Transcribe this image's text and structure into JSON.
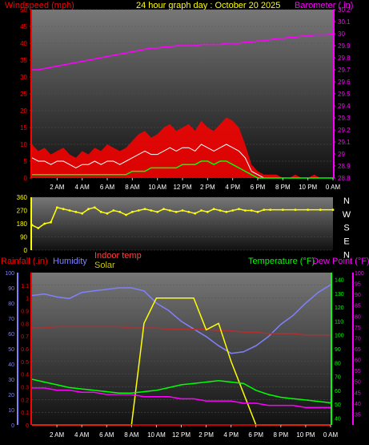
{
  "header": {
    "title": "24 hour graph day : October 20 2025",
    "left_label": "Windspeed (mph)",
    "right_label": "Barometer (.in)"
  },
  "colors": {
    "title": "#ffff00",
    "wind": "#ff0000",
    "gust_band": "#ff0000",
    "avg_wind": "#00ff00",
    "barometer": "#ff00ff",
    "direction": "#ffff00",
    "rainfall": "#ff0000",
    "humidity": "#8080ff",
    "indoor_temp": "#ff4040",
    "solar": "#ffff00",
    "temperature": "#00ff00",
    "dew_point": "#ff00ff",
    "plot_bg": "#333333"
  },
  "time_axis": [
    "2 AM",
    "4 AM",
    "6 AM",
    "8 AM",
    "10 AM",
    "12 PM",
    "2 PM",
    "4 PM",
    "6 PM",
    "8 PM",
    "10 PM",
    "0 AM"
  ],
  "chart_data": [
    {
      "type": "line",
      "name": "wind-barometer",
      "x_hours": [
        0,
        0.5,
        1,
        1.5,
        2,
        2.5,
        3,
        3.5,
        4,
        4.5,
        5,
        5.5,
        6,
        6.5,
        7,
        7.5,
        8,
        8.5,
        9,
        9.5,
        10,
        10.5,
        11,
        11.5,
        12,
        12.5,
        13,
        13.5,
        14,
        14.5,
        15,
        15.5,
        16,
        16.5,
        17,
        17.5,
        18,
        18.5,
        19,
        19.5,
        20,
        20.5,
        21,
        21.5,
        22,
        22.5,
        23,
        23.5,
        24
      ],
      "left_axis": {
        "label": "Windspeed (mph)",
        "ylim": [
          0,
          50
        ],
        "ticks": [
          0,
          5,
          10,
          15,
          20,
          25,
          30,
          35,
          40,
          45,
          50
        ]
      },
      "right_axis": {
        "label": "Barometer (.in)",
        "ylim": [
          28.8,
          30.2
        ],
        "ticks": [
          "28.8",
          "28.9",
          "29",
          "29.1",
          "29.2",
          "29.3",
          "29.4",
          "29.5",
          "29.6",
          "29.7",
          "29.8",
          "29.9",
          "30",
          "30.1",
          "30.2"
        ]
      },
      "series": [
        {
          "id": "gust",
          "values": [
            10,
            8,
            9,
            7,
            8,
            9,
            7,
            6,
            8,
            7,
            9,
            8,
            10,
            9,
            8,
            9,
            11,
            13,
            14,
            12,
            13,
            15,
            16,
            14,
            15,
            16,
            14,
            17,
            15,
            14,
            16,
            18,
            17,
            15,
            10,
            4,
            2,
            1,
            1,
            1,
            0,
            0,
            1,
            0,
            0,
            1,
            0,
            0,
            0
          ]
        },
        {
          "id": "wind",
          "values": [
            6,
            5,
            5,
            4,
            5,
            5,
            4,
            3,
            4,
            4,
            5,
            4,
            5,
            5,
            4,
            5,
            6,
            7,
            8,
            7,
            7,
            8,
            9,
            8,
            9,
            9,
            8,
            10,
            9,
            8,
            9,
            10,
            9,
            8,
            6,
            2,
            1,
            0,
            0,
            0,
            0,
            0,
            0,
            0,
            0,
            0,
            0,
            0,
            0
          ]
        },
        {
          "id": "avg_wind",
          "values": [
            1,
            1,
            1,
            1,
            1,
            1,
            1,
            1,
            1,
            1,
            1,
            1,
            1,
            1,
            1,
            1,
            2,
            2,
            2,
            3,
            3,
            3,
            3,
            3,
            4,
            4,
            4,
            5,
            5,
            4,
            5,
            5,
            4,
            3,
            2,
            1,
            0,
            0,
            0,
            0,
            0,
            0,
            0,
            0,
            0,
            0,
            0,
            0,
            0
          ]
        },
        {
          "id": "barometer",
          "values": [
            29.7,
            29.7,
            29.71,
            29.72,
            29.73,
            29.74,
            29.75,
            29.76,
            29.77,
            29.78,
            29.79,
            29.8,
            29.81,
            29.82,
            29.83,
            29.84,
            29.85,
            29.86,
            29.87,
            29.88,
            29.88,
            29.89,
            29.89,
            29.9,
            29.9,
            29.9,
            29.9,
            29.91,
            29.91,
            29.91,
            29.91,
            29.92,
            29.92,
            29.92,
            29.93,
            29.93,
            29.94,
            29.94,
            29.95,
            29.96,
            29.96,
            29.97,
            29.97,
            29.98,
            29.98,
            29.99,
            29.99,
            29.99,
            30.0
          ]
        }
      ]
    },
    {
      "type": "scatter",
      "name": "wind-direction",
      "x_hours": [
        0,
        0.5,
        1,
        1.5,
        2,
        2.5,
        3,
        3.5,
        4,
        4.5,
        5,
        5.5,
        6,
        6.5,
        7,
        7.5,
        8,
        8.5,
        9,
        9.5,
        10,
        10.5,
        11,
        11.5,
        12,
        12.5,
        13,
        13.5,
        14,
        14.5,
        15,
        15.5,
        16,
        16.5,
        17,
        17.5,
        18,
        18.5,
        19,
        20,
        21,
        22,
        23,
        24
      ],
      "y_axis": {
        "ylim": [
          0,
          360
        ],
        "ticks": [
          "0",
          "90",
          "180",
          "270",
          "360"
        ]
      },
      "compass_labels": [
        "N",
        "W",
        "S",
        "E",
        "N"
      ],
      "values": [
        170,
        150,
        180,
        190,
        290,
        280,
        270,
        260,
        250,
        280,
        290,
        260,
        250,
        270,
        260,
        240,
        260,
        270,
        280,
        270,
        260,
        280,
        270,
        260,
        270,
        260,
        250,
        270,
        260,
        280,
        270,
        260,
        270,
        280,
        270,
        270,
        260,
        275,
        275,
        275,
        275,
        275,
        275,
        275
      ]
    },
    {
      "type": "line",
      "name": "temperature-humidity",
      "x_hours": [
        0,
        1,
        2,
        3,
        4,
        5,
        6,
        7,
        8,
        9,
        10,
        11,
        12,
        13,
        14,
        15,
        16,
        17,
        18,
        19,
        20,
        21,
        22,
        23,
        24
      ],
      "left_axis": {
        "label": "Rainfall (.in)",
        "ylim": [
          0,
          1.2
        ],
        "ticks": [
          "0",
          "0.1",
          "0.2",
          "0.3",
          "0.4",
          "0.5",
          "0.6",
          "0.7",
          "0.8",
          "0.9",
          "1",
          "1.1"
        ]
      },
      "left_axis2": {
        "label": "Humidity",
        "ylim": [
          0,
          100
        ],
        "ticks": [
          "0",
          "10",
          "20",
          "30",
          "40",
          "50",
          "60",
          "70",
          "80",
          "90",
          "100"
        ]
      },
      "right_axis": {
        "label": "Temperature (°F)",
        "ylim": [
          35,
          145
        ],
        "ticks": [
          "40",
          "50",
          "60",
          "70",
          "80",
          "90",
          "100",
          "110",
          "120",
          "130",
          "140"
        ]
      },
      "right_axis2": {
        "label": "Dew Point (°F)",
        "ylim": [
          30,
          100
        ],
        "ticks": [
          "35",
          "40",
          "45",
          "50",
          "55",
          "60",
          "65",
          "70",
          "75",
          "80",
          "85",
          "90",
          "95",
          "100"
        ]
      },
      "legend_center": [
        "Indoor temp",
        "Solar"
      ],
      "series": [
        {
          "id": "humidity",
          "values": [
            85,
            86,
            84,
            83,
            87,
            88,
            89,
            90,
            90,
            88,
            80,
            75,
            68,
            63,
            58,
            52,
            47,
            48,
            52,
            58,
            66,
            72,
            80,
            87,
            92
          ]
        },
        {
          "id": "indoor_temp",
          "values": [
            105,
            105,
            106,
            106,
            106,
            106,
            106,
            106,
            105,
            105,
            105,
            104,
            104,
            104,
            104,
            103,
            103,
            102,
            102,
            101,
            101,
            101,
            100,
            100,
            100
          ]
        },
        {
          "id": "solar",
          "values": [
            0,
            0,
            0,
            0,
            0,
            0,
            0,
            0,
            0,
            0.8,
            1.0,
            1.0,
            1.0,
            1.0,
            0.75,
            0.8,
            0.5,
            0.25,
            0,
            0,
            0,
            0,
            0,
            0,
            0
          ]
        },
        {
          "id": "temperature",
          "values": [
            68,
            66,
            64,
            62,
            61,
            60,
            59,
            58,
            58,
            59,
            60,
            62,
            64,
            65,
            66,
            67,
            66,
            65,
            60,
            57,
            55,
            54,
            53,
            52,
            51
          ]
        },
        {
          "id": "dew_point",
          "values": [
            47,
            47,
            46,
            46,
            45,
            45,
            44,
            44,
            44,
            43,
            43,
            43,
            42,
            42,
            41,
            41,
            41,
            40,
            40,
            39,
            39,
            39,
            38,
            38,
            38
          ]
        },
        {
          "id": "rainfall",
          "values": [
            0,
            0,
            0,
            0,
            0,
            0,
            0,
            0,
            0,
            0,
            0,
            0,
            0,
            0,
            0,
            0,
            0,
            0,
            0,
            0,
            0,
            0,
            0,
            0,
            0
          ]
        }
      ]
    }
  ],
  "panel2": {
    "legend_left": "Rainfall (.in)",
    "legend_humidity": "Humidity",
    "legend_indoor": "Indoor temp",
    "legend_solar": "Solar",
    "legend_temp": "Temperature (°F)",
    "legend_dew": "Dew Point (°F)"
  }
}
